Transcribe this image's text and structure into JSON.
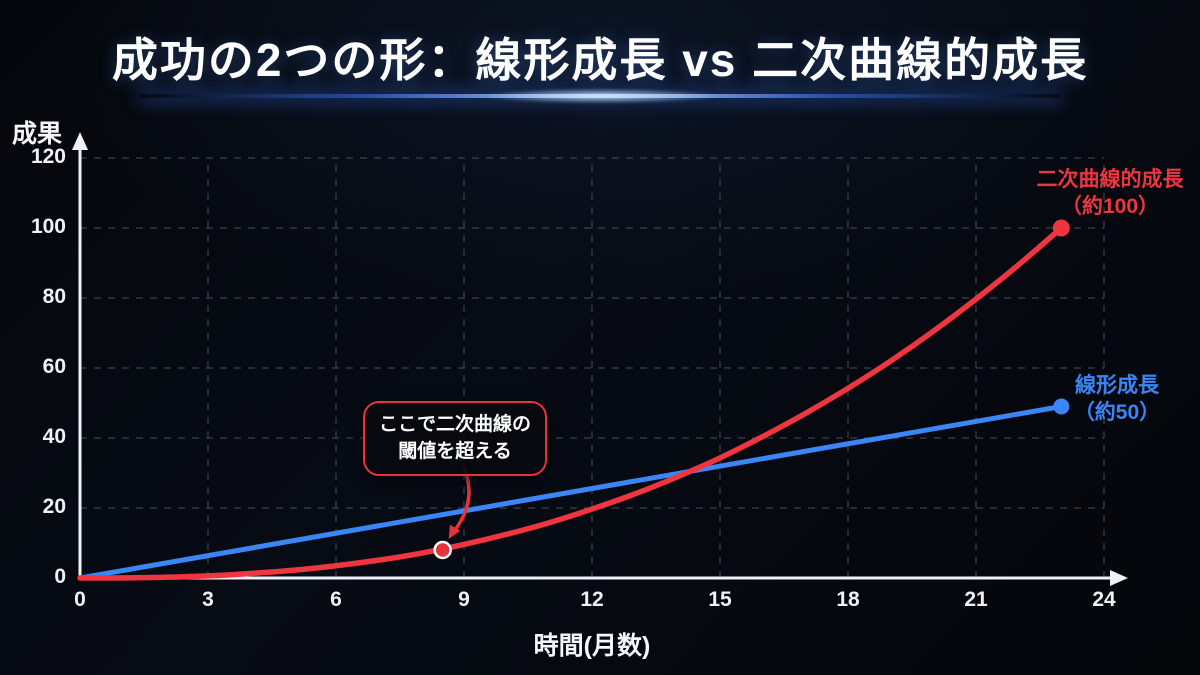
{
  "title": "成功の2つの形：線形成長 vs 二次曲線的成長",
  "chart_data": {
    "type": "line",
    "title": "成功の2つの形：線形成長 vs 二次曲線的成長",
    "xlabel": "時間(月数)",
    "ylabel": "成果",
    "x_ticks": [
      0,
      3,
      6,
      9,
      12,
      15,
      18,
      21,
      24
    ],
    "y_ticks": [
      0,
      20,
      40,
      60,
      80,
      100,
      120
    ],
    "xlim": [
      0,
      24
    ],
    "ylim": [
      0,
      120
    ],
    "grid": "dashed",
    "legend": "end-of-line labels",
    "series": [
      {
        "name": "二次曲線的成長",
        "color": "#ee3540",
        "x": [
          0,
          1,
          2,
          3,
          4,
          5,
          6,
          7,
          8,
          9,
          10,
          11,
          12,
          13,
          14,
          15,
          16,
          17,
          18,
          19,
          20,
          21,
          22,
          23
        ],
        "values": [
          0,
          0.04,
          0.2,
          0.6,
          1.3,
          2.2,
          3.5,
          5.1,
          7.1,
          9.6,
          12.5,
          15.8,
          19.7,
          24,
          28.9,
          34.3,
          40.4,
          47,
          54.2,
          62,
          70.5,
          79.7,
          89.5,
          100
        ],
        "end_label_lines": [
          "二次曲線的成長",
          "（約100）"
        ]
      },
      {
        "name": "線形成長",
        "color": "#3b86f6",
        "x": [
          0,
          23
        ],
        "values": [
          0,
          49
        ],
        "end_label_lines": [
          "線形成長",
          "（約50）"
        ]
      }
    ],
    "annotation": {
      "lines": [
        "ここで二次曲線の",
        "閾値を超える"
      ],
      "point": {
        "x": 8.5,
        "y": 8
      },
      "color": "#e8323c"
    }
  }
}
